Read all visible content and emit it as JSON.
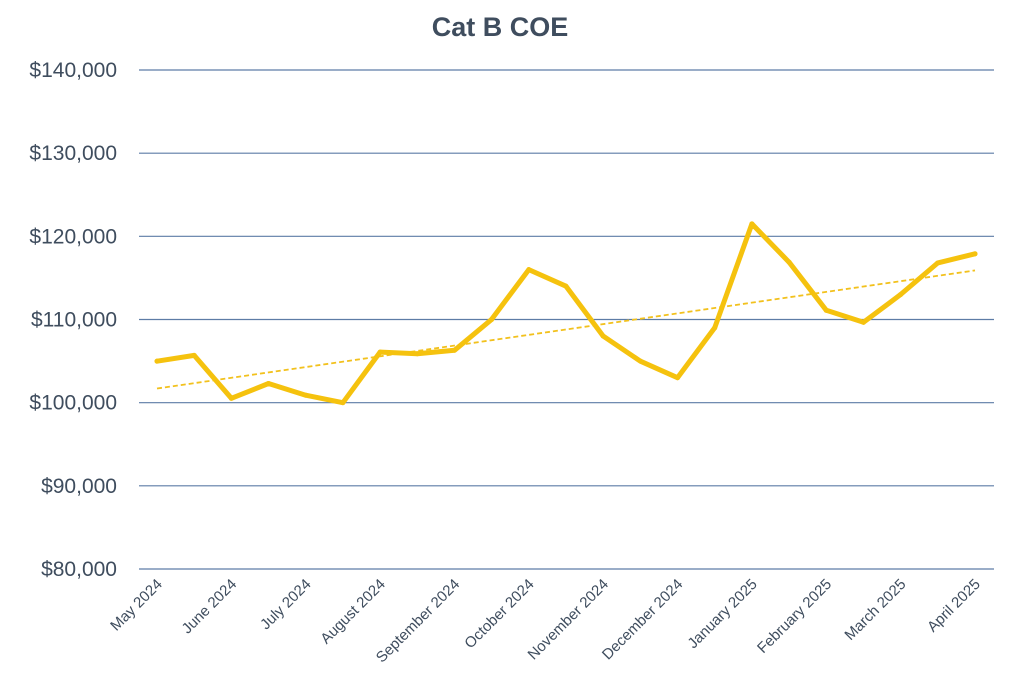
{
  "chart_data": {
    "type": "line",
    "title": "Cat B COE",
    "xlabel": "",
    "ylabel": "",
    "ylim": [
      80000,
      140000
    ],
    "yticks": [
      80000,
      90000,
      100000,
      110000,
      120000,
      130000,
      140000
    ],
    "ytick_labels": [
      "$80,000",
      "$90,000",
      "$100,000",
      "$110,000",
      "$120,000",
      "$130,000",
      "$140,000"
    ],
    "xtick_labels": [
      "May 2024",
      "June 2024",
      "July 2024",
      "August 2024",
      "September 2024",
      "October 2024",
      "November 2024",
      "December 2024",
      "January 2025",
      "February 2025",
      "March 2025",
      "April 2025"
    ],
    "grid": "horizontal",
    "legend": "none",
    "series": [
      {
        "values": [
          104990,
          105680,
          100524,
          102300,
          100899,
          99999,
          106084,
          105889,
          106300,
          110009,
          116000,
          113999,
          108000,
          104990,
          102998,
          109001,
          121500,
          116890,
          111101,
          109658,
          113000,
          116801,
          117898
        ]
      }
    ],
    "trendline": {
      "type": "linear",
      "start": 101700,
      "end": 115900
    },
    "colors": {
      "line": "#f5c20e",
      "trendline": "#f2c11d",
      "grid": "#5d7ca6",
      "text": "#3f4d5e"
    }
  }
}
